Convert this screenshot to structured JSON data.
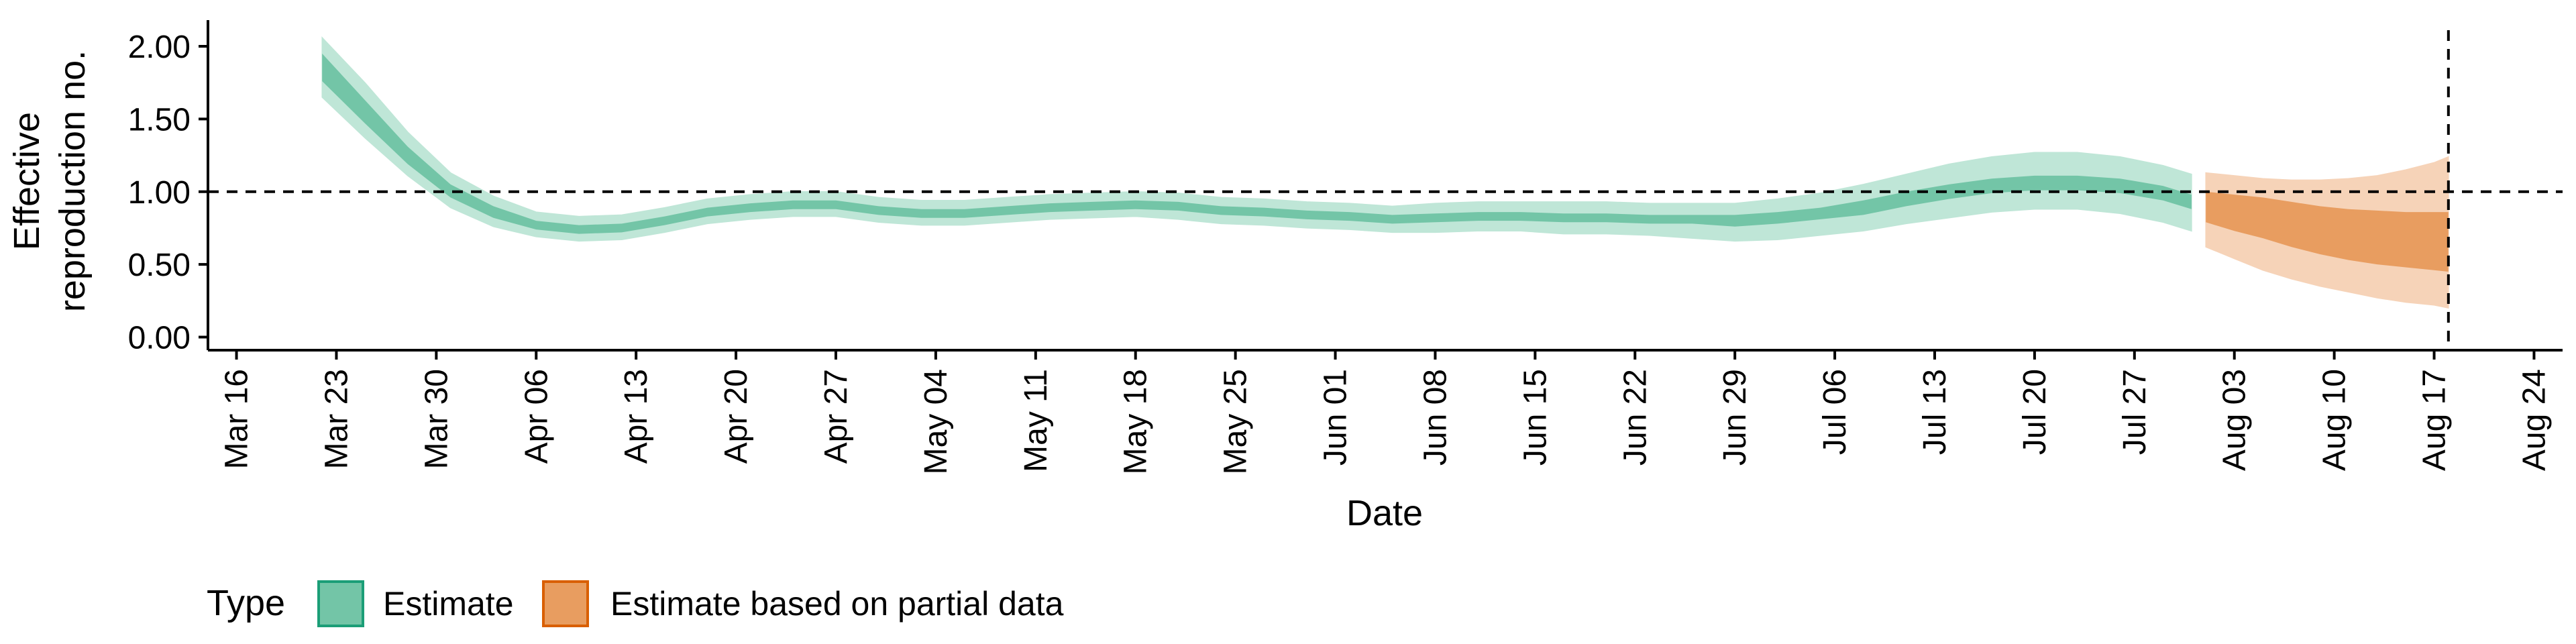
{
  "chart_data": {
    "type": "area",
    "xlabel": "Date",
    "ylabel": [
      "Effective",
      "reproduction no."
    ],
    "x_ticks": [
      "Mar 16",
      "Mar 23",
      "Mar 30",
      "Apr 06",
      "Apr 13",
      "Apr 20",
      "Apr 27",
      "May 04",
      "May 11",
      "May 18",
      "May 25",
      "Jun 01",
      "Jun 08",
      "Jun 15",
      "Jun 22",
      "Jun 29",
      "Jul 06",
      "Jul 13",
      "Jul 20",
      "Jul 27",
      "Aug 03",
      "Aug 10",
      "Aug 17",
      "Aug 24"
    ],
    "x_tick_dates": [
      "2020-03-16",
      "2020-03-23",
      "2020-03-30",
      "2020-04-06",
      "2020-04-13",
      "2020-04-20",
      "2020-04-27",
      "2020-05-04",
      "2020-05-11",
      "2020-05-18",
      "2020-05-25",
      "2020-06-01",
      "2020-06-08",
      "2020-06-15",
      "2020-06-22",
      "2020-06-29",
      "2020-07-06",
      "2020-07-13",
      "2020-07-20",
      "2020-07-27",
      "2020-08-03",
      "2020-08-10",
      "2020-08-17",
      "2020-08-24"
    ],
    "xlim": [
      "2020-03-14",
      "2020-08-26"
    ],
    "y_ticks": [
      "0.00",
      "0.50",
      "1.00",
      "1.50",
      "2.00"
    ],
    "ylim": [
      -0.09,
      2.18
    ],
    "reference_line_y": 1.0,
    "reference_line_date": "2020-08-18",
    "legend": {
      "position": "bottom-left",
      "title": "Type",
      "entries": [
        {
          "label": "Estimate",
          "color": "#1b9e77"
        },
        {
          "label": "Estimate based on partial data",
          "color": "#d95f02"
        }
      ]
    },
    "series": [
      {
        "name": "Estimate",
        "color": "#1b9e77",
        "x": [
          "2020-03-22",
          "2020-03-25",
          "2020-03-28",
          "2020-03-31",
          "2020-04-03",
          "2020-04-06",
          "2020-04-09",
          "2020-04-12",
          "2020-04-15",
          "2020-04-18",
          "2020-04-21",
          "2020-04-24",
          "2020-04-27",
          "2020-04-30",
          "2020-05-03",
          "2020-05-06",
          "2020-05-09",
          "2020-05-12",
          "2020-05-15",
          "2020-05-18",
          "2020-05-21",
          "2020-05-24",
          "2020-05-27",
          "2020-05-30",
          "2020-06-02",
          "2020-06-05",
          "2020-06-08",
          "2020-06-11",
          "2020-06-14",
          "2020-06-17",
          "2020-06-20",
          "2020-06-23",
          "2020-06-26",
          "2020-06-29",
          "2020-07-02",
          "2020-07-05",
          "2020-07-08",
          "2020-07-11",
          "2020-07-14",
          "2020-07-17",
          "2020-07-20",
          "2020-07-23",
          "2020-07-26",
          "2020-07-29",
          "2020-07-31"
        ],
        "median": [
          1.85,
          1.55,
          1.25,
          1.0,
          0.86,
          0.77,
          0.74,
          0.75,
          0.8,
          0.86,
          0.89,
          0.91,
          0.91,
          0.87,
          0.85,
          0.85,
          0.87,
          0.89,
          0.9,
          0.91,
          0.9,
          0.87,
          0.86,
          0.84,
          0.83,
          0.81,
          0.82,
          0.83,
          0.83,
          0.82,
          0.82,
          0.81,
          0.81,
          0.8,
          0.82,
          0.85,
          0.89,
          0.95,
          1.0,
          1.04,
          1.06,
          1.06,
          1.04,
          0.99,
          0.93
        ],
        "inner_low": [
          1.76,
          1.47,
          1.19,
          0.96,
          0.82,
          0.74,
          0.71,
          0.72,
          0.77,
          0.83,
          0.86,
          0.88,
          0.88,
          0.84,
          0.82,
          0.82,
          0.84,
          0.86,
          0.87,
          0.88,
          0.87,
          0.84,
          0.83,
          0.81,
          0.8,
          0.78,
          0.79,
          0.8,
          0.8,
          0.79,
          0.79,
          0.78,
          0.78,
          0.76,
          0.78,
          0.81,
          0.84,
          0.9,
          0.95,
          0.99,
          1.01,
          1.01,
          0.99,
          0.94,
          0.88
        ],
        "inner_high": [
          1.95,
          1.63,
          1.31,
          1.05,
          0.9,
          0.8,
          0.77,
          0.78,
          0.83,
          0.89,
          0.92,
          0.94,
          0.94,
          0.9,
          0.88,
          0.88,
          0.9,
          0.92,
          0.93,
          0.94,
          0.93,
          0.9,
          0.89,
          0.87,
          0.86,
          0.84,
          0.85,
          0.86,
          0.86,
          0.85,
          0.85,
          0.84,
          0.84,
          0.84,
          0.86,
          0.89,
          0.94,
          1.0,
          1.05,
          1.09,
          1.11,
          1.11,
          1.09,
          1.04,
          0.98
        ],
        "outer_low": [
          1.65,
          1.37,
          1.11,
          0.89,
          0.76,
          0.69,
          0.66,
          0.67,
          0.72,
          0.78,
          0.81,
          0.83,
          0.83,
          0.79,
          0.77,
          0.77,
          0.79,
          0.81,
          0.82,
          0.83,
          0.81,
          0.78,
          0.77,
          0.75,
          0.74,
          0.72,
          0.72,
          0.73,
          0.73,
          0.71,
          0.71,
          0.7,
          0.68,
          0.66,
          0.67,
          0.7,
          0.73,
          0.78,
          0.82,
          0.86,
          0.88,
          0.88,
          0.85,
          0.79,
          0.73
        ],
        "outer_high": [
          2.06,
          1.75,
          1.41,
          1.13,
          0.97,
          0.86,
          0.83,
          0.84,
          0.89,
          0.95,
          0.98,
          1.0,
          1.0,
          0.96,
          0.94,
          0.94,
          0.96,
          0.98,
          0.99,
          1.0,
          0.99,
          0.96,
          0.95,
          0.93,
          0.92,
          0.9,
          0.92,
          0.93,
          0.93,
          0.93,
          0.93,
          0.92,
          0.92,
          0.92,
          0.95,
          0.99,
          1.05,
          1.12,
          1.19,
          1.24,
          1.27,
          1.27,
          1.24,
          1.18,
          1.12
        ]
      },
      {
        "name": "Estimate based on partial data",
        "color": "#d95f02",
        "x": [
          "2020-08-01",
          "2020-08-03",
          "2020-08-05",
          "2020-08-07",
          "2020-08-09",
          "2020-08-11",
          "2020-08-13",
          "2020-08-15",
          "2020-08-17",
          "2020-08-18"
        ],
        "median": [
          0.9,
          0.87,
          0.84,
          0.8,
          0.76,
          0.73,
          0.71,
          0.69,
          0.68,
          0.66
        ],
        "inner_low": [
          0.79,
          0.73,
          0.68,
          0.62,
          0.57,
          0.53,
          0.5,
          0.48,
          0.46,
          0.45
        ],
        "inner_high": [
          1.0,
          0.98,
          0.96,
          0.93,
          0.9,
          0.88,
          0.87,
          0.86,
          0.86,
          0.86
        ],
        "outer_low": [
          0.62,
          0.54,
          0.46,
          0.4,
          0.35,
          0.31,
          0.27,
          0.24,
          0.22,
          0.2
        ],
        "outer_high": [
          1.13,
          1.11,
          1.09,
          1.08,
          1.08,
          1.09,
          1.11,
          1.15,
          1.2,
          1.24
        ]
      }
    ]
  }
}
